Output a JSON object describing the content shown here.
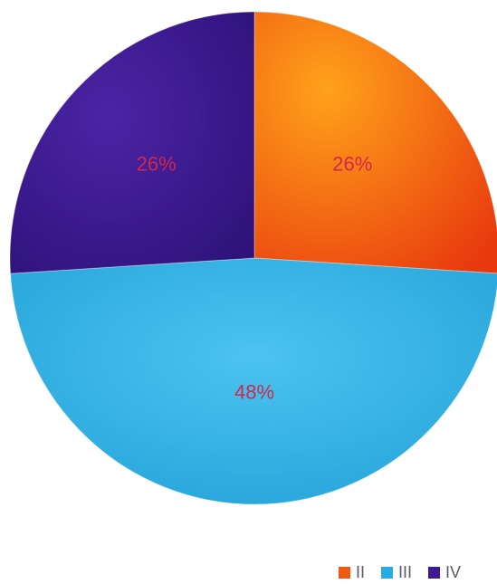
{
  "chart_data": {
    "type": "pie",
    "slices": [
      {
        "label": "II",
        "value": 26,
        "display": "26%",
        "color": "#ee5a12"
      },
      {
        "label": "III",
        "value": 48,
        "display": "48%",
        "color": "#29abe2"
      },
      {
        "label": "IV",
        "value": 26,
        "display": "26%",
        "color": "#3f1a8f"
      }
    ],
    "legend_position": "bottom-right"
  }
}
